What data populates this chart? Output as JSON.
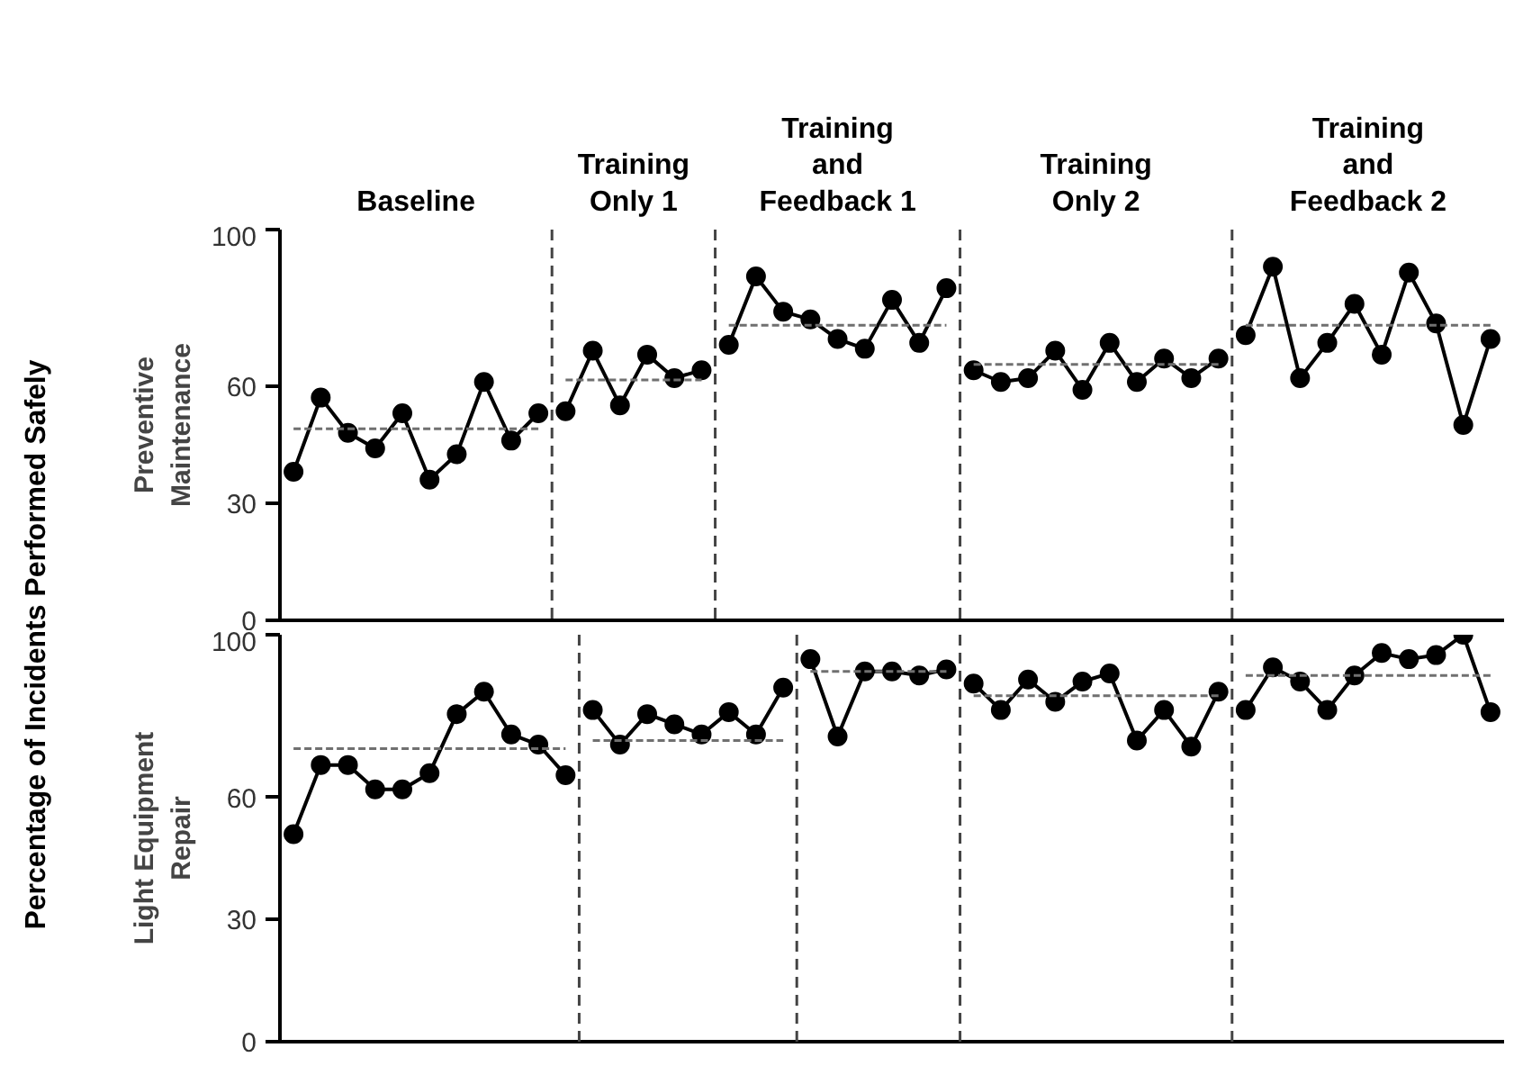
{
  "chart_data": [
    {
      "type": "line",
      "ylabel": "Preventive\nMaintenance",
      "ylim": [
        0,
        100
      ],
      "yticks": [
        0,
        30,
        60,
        100
      ],
      "grid": false,
      "tick_labels": "y",
      "marker": "circle",
      "line_style": "solid",
      "annotations": [
        "Baseline",
        "Training\nOnly 1",
        "Training\nand\nFeedback 1",
        "Training\nOnly 2",
        "Training\nand\nFeedback 2",
        "Percentage of Incidents Performed Safely"
      ],
      "categories": [
        null,
        null,
        null,
        null,
        null,
        null,
        null,
        null,
        null,
        null,
        null,
        null,
        null,
        null,
        null,
        null,
        null,
        null,
        null,
        null,
        null,
        null,
        null,
        null,
        null,
        null,
        null,
        null,
        null,
        null,
        null,
        null,
        null,
        null,
        null,
        null,
        null,
        null,
        null,
        null,
        null,
        null,
        null,
        null,
        null
      ],
      "series": [
        {
          "color": "#000000",
          "values": [
            38,
            57,
            48,
            44,
            53,
            36,
            42.5,
            61,
            46,
            53,
            null,
            null,
            null,
            null,
            null,
            null,
            null,
            null,
            null,
            null,
            null,
            null,
            null,
            null,
            null,
            null,
            null,
            null,
            null,
            null,
            null,
            null,
            null,
            null,
            null,
            null,
            null,
            null,
            null,
            null,
            null,
            null,
            null,
            null,
            null
          ]
        },
        {
          "color": "#000000",
          "values": [
            null,
            null,
            null,
            null,
            null,
            null,
            null,
            null,
            null,
            null,
            53.5,
            69,
            55,
            68,
            62,
            64,
            null,
            null,
            null,
            null,
            null,
            null,
            null,
            null,
            null,
            null,
            null,
            null,
            null,
            null,
            null,
            null,
            null,
            null,
            null,
            null,
            null,
            null,
            null,
            null,
            null,
            null,
            null,
            null,
            null
          ]
        },
        {
          "color": "#000000",
          "values": [
            null,
            null,
            null,
            null,
            null,
            null,
            null,
            null,
            null,
            null,
            null,
            null,
            null,
            null,
            null,
            null,
            70.5,
            88,
            79,
            77,
            72,
            69.5,
            82,
            71,
            85,
            null,
            null,
            null,
            null,
            null,
            null,
            null,
            null,
            null,
            null,
            null,
            null,
            null,
            null,
            null,
            null,
            null,
            null,
            null,
            null
          ]
        },
        {
          "color": "#000000",
          "values": [
            null,
            null,
            null,
            null,
            null,
            null,
            null,
            null,
            null,
            null,
            null,
            null,
            null,
            null,
            null,
            null,
            null,
            null,
            null,
            null,
            null,
            null,
            null,
            null,
            null,
            64,
            61,
            62,
            69,
            59,
            71,
            61,
            67,
            62,
            67,
            null,
            null,
            null,
            null,
            null,
            null,
            null,
            null,
            null,
            null
          ]
        },
        {
          "color": "#000000",
          "values": [
            null,
            null,
            null,
            null,
            null,
            null,
            null,
            null,
            null,
            null,
            null,
            null,
            null,
            null,
            null,
            null,
            null,
            null,
            null,
            null,
            null,
            null,
            null,
            null,
            null,
            null,
            null,
            null,
            null,
            null,
            null,
            null,
            null,
            null,
            null,
            73,
            90.5,
            62,
            71,
            81,
            68,
            89,
            76,
            50,
            72
          ]
        },
        {
          "color": "#707070",
          "marker": "none",
          "line_style": "dashed",
          "values": [
            49,
            49,
            49,
            49,
            49,
            49,
            49,
            49,
            49,
            49,
            null,
            null,
            null,
            null,
            null,
            null,
            null,
            null,
            null,
            null,
            null,
            null,
            null,
            null,
            null,
            null,
            null,
            null,
            null,
            null,
            null,
            null,
            null,
            null,
            null,
            null,
            null,
            null,
            null,
            null,
            null,
            null,
            null,
            null,
            null
          ]
        },
        {
          "color": "#707070",
          "marker": "none",
          "line_style": "dashed",
          "values": [
            null,
            null,
            null,
            null,
            null,
            null,
            null,
            null,
            null,
            null,
            61.5,
            61.5,
            61.5,
            61.5,
            61.5,
            61.5,
            null,
            null,
            null,
            null,
            null,
            null,
            null,
            null,
            null,
            null,
            null,
            null,
            null,
            null,
            null,
            null,
            null,
            null,
            null,
            null,
            null,
            null,
            null,
            null,
            null,
            null,
            null,
            null,
            null
          ]
        },
        {
          "color": "#707070",
          "marker": "none",
          "line_style": "dashed",
          "values": [
            null,
            null,
            null,
            null,
            null,
            null,
            null,
            null,
            null,
            null,
            null,
            null,
            null,
            null,
            null,
            null,
            75.5,
            75.5,
            75.5,
            75.5,
            75.5,
            75.5,
            75.5,
            75.5,
            75.5,
            null,
            null,
            null,
            null,
            null,
            null,
            null,
            null,
            null,
            null,
            null,
            null,
            null,
            null,
            null,
            null,
            null,
            null,
            null,
            null
          ]
        },
        {
          "color": "#707070",
          "marker": "none",
          "line_style": "dashed",
          "values": [
            null,
            null,
            null,
            null,
            null,
            null,
            null,
            null,
            null,
            null,
            null,
            null,
            null,
            null,
            null,
            null,
            null,
            null,
            null,
            null,
            null,
            null,
            null,
            null,
            null,
            65.5,
            65.5,
            65.5,
            65.5,
            65.5,
            65.5,
            65.5,
            65.5,
            65.5,
            65.5,
            null,
            null,
            null,
            null,
            null,
            null,
            null,
            null,
            null,
            null
          ]
        },
        {
          "color": "#707070",
          "marker": "none",
          "line_style": "dashed",
          "values": [
            null,
            null,
            null,
            null,
            null,
            null,
            null,
            null,
            null,
            null,
            null,
            null,
            null,
            null,
            null,
            null,
            null,
            null,
            null,
            null,
            null,
            null,
            null,
            null,
            null,
            null,
            null,
            null,
            null,
            null,
            null,
            null,
            null,
            null,
            null,
            75.5,
            75.5,
            75.5,
            75.5,
            75.5,
            75.5,
            75.5,
            75.5,
            75.5,
            75.5
          ]
        }
      ]
    },
    {
      "type": "line",
      "ylabel": "Light Equipment\nRepair",
      "ylim": [
        0,
        100
      ],
      "yticks": [
        0,
        30,
        60,
        100
      ],
      "grid": false,
      "tick_labels": "y",
      "marker": "circle",
      "line_style": "solid",
      "categories": [
        null,
        null,
        null,
        null,
        null,
        null,
        null,
        null,
        null,
        null,
        null,
        null,
        null,
        null,
        null,
        null,
        null,
        null,
        null,
        null,
        null,
        null,
        null,
        null,
        null,
        null,
        null,
        null,
        null,
        null,
        null,
        null,
        null,
        null,
        null,
        null,
        null,
        null,
        null,
        null,
        null,
        null,
        null,
        null,
        null
      ],
      "series": [
        {
          "color": "#000000",
          "values": [
            51,
            68,
            68,
            62,
            62,
            66,
            80.5,
            86,
            75.5,
            73,
            65.5,
            null,
            null,
            null,
            null,
            null,
            null,
            null,
            null,
            null,
            null,
            null,
            null,
            null,
            null,
            null,
            null,
            null,
            null,
            null,
            null,
            null,
            null,
            null,
            null,
            null,
            null,
            null,
            null,
            null,
            null,
            null,
            null,
            null,
            null
          ]
        },
        {
          "color": "#000000",
          "values": [
            null,
            null,
            null,
            null,
            null,
            null,
            null,
            null,
            null,
            null,
            null,
            81.5,
            73,
            80.5,
            78,
            75.5,
            81,
            75.5,
            87,
            null,
            null,
            null,
            null,
            null,
            null,
            null,
            null,
            null,
            null,
            null,
            null,
            null,
            null,
            null,
            null,
            null,
            null,
            null,
            null,
            null,
            null,
            null,
            null,
            null,
            null
          ]
        },
        {
          "color": "#000000",
          "values": [
            null,
            null,
            null,
            null,
            null,
            null,
            null,
            null,
            null,
            null,
            null,
            null,
            null,
            null,
            null,
            null,
            null,
            null,
            null,
            94,
            75,
            91,
            91,
            90,
            91.5,
            null,
            null,
            null,
            null,
            null,
            null,
            null,
            null,
            null,
            null,
            null,
            null,
            null,
            null,
            null,
            null,
            null,
            null,
            null,
            null
          ]
        },
        {
          "color": "#000000",
          "values": [
            null,
            null,
            null,
            null,
            null,
            null,
            null,
            null,
            null,
            null,
            null,
            null,
            null,
            null,
            null,
            null,
            null,
            null,
            null,
            null,
            null,
            null,
            null,
            null,
            null,
            88,
            81.5,
            89,
            83.5,
            88.5,
            90.5,
            74,
            81.5,
            72.5,
            86,
            null,
            null,
            null,
            null,
            null,
            null,
            null,
            null,
            null,
            null
          ]
        },
        {
          "color": "#000000",
          "values": [
            null,
            null,
            null,
            null,
            null,
            null,
            null,
            null,
            null,
            null,
            null,
            null,
            null,
            null,
            null,
            null,
            null,
            null,
            null,
            null,
            null,
            null,
            null,
            null,
            null,
            null,
            null,
            null,
            null,
            null,
            null,
            null,
            null,
            null,
            null,
            81.5,
            92,
            88.5,
            81.5,
            90,
            95.5,
            94,
            95,
            100,
            81
          ]
        },
        {
          "color": "#707070",
          "marker": "none",
          "line_style": "dashed",
          "values": [
            72,
            72,
            72,
            72,
            72,
            72,
            72,
            72,
            72,
            72,
            72,
            null,
            null,
            null,
            null,
            null,
            null,
            null,
            null,
            null,
            null,
            null,
            null,
            null,
            null,
            null,
            null,
            null,
            null,
            null,
            null,
            null,
            null,
            null,
            null,
            null,
            null,
            null,
            null,
            null,
            null,
            null,
            null,
            null,
            null
          ]
        },
        {
          "color": "#707070",
          "marker": "none",
          "line_style": "dashed",
          "values": [
            null,
            null,
            null,
            null,
            null,
            null,
            null,
            null,
            null,
            null,
            null,
            74,
            74,
            74,
            74,
            74,
            74,
            74,
            74,
            null,
            null,
            null,
            null,
            null,
            null,
            null,
            null,
            null,
            null,
            null,
            null,
            null,
            null,
            null,
            null,
            null,
            null,
            null,
            null,
            null,
            null,
            null,
            null,
            null,
            null
          ]
        },
        {
          "color": "#707070",
          "marker": "none",
          "line_style": "dashed",
          "values": [
            null,
            null,
            null,
            null,
            null,
            null,
            null,
            null,
            null,
            null,
            null,
            null,
            null,
            null,
            null,
            null,
            null,
            null,
            null,
            91,
            91,
            91,
            91,
            91,
            91,
            null,
            null,
            null,
            null,
            null,
            null,
            null,
            null,
            null,
            null,
            null,
            null,
            null,
            null,
            null,
            null,
            null,
            null,
            null,
            null
          ]
        },
        {
          "color": "#707070",
          "marker": "none",
          "line_style": "dashed",
          "values": [
            null,
            null,
            null,
            null,
            null,
            null,
            null,
            null,
            null,
            null,
            null,
            null,
            null,
            null,
            null,
            null,
            null,
            null,
            null,
            null,
            null,
            null,
            null,
            null,
            null,
            85,
            85,
            85,
            85,
            85,
            85,
            85,
            85,
            85,
            85,
            null,
            null,
            null,
            null,
            null,
            null,
            null,
            null,
            null,
            null
          ]
        },
        {
          "color": "#707070",
          "marker": "none",
          "line_style": "dashed",
          "values": [
            null,
            null,
            null,
            null,
            null,
            null,
            null,
            null,
            null,
            null,
            null,
            null,
            null,
            null,
            null,
            null,
            null,
            null,
            null,
            null,
            null,
            null,
            null,
            null,
            null,
            null,
            null,
            null,
            null,
            null,
            null,
            null,
            null,
            null,
            null,
            90,
            90,
            90,
            90,
            90,
            90,
            90,
            90,
            90,
            90
          ]
        }
      ]
    }
  ]
}
